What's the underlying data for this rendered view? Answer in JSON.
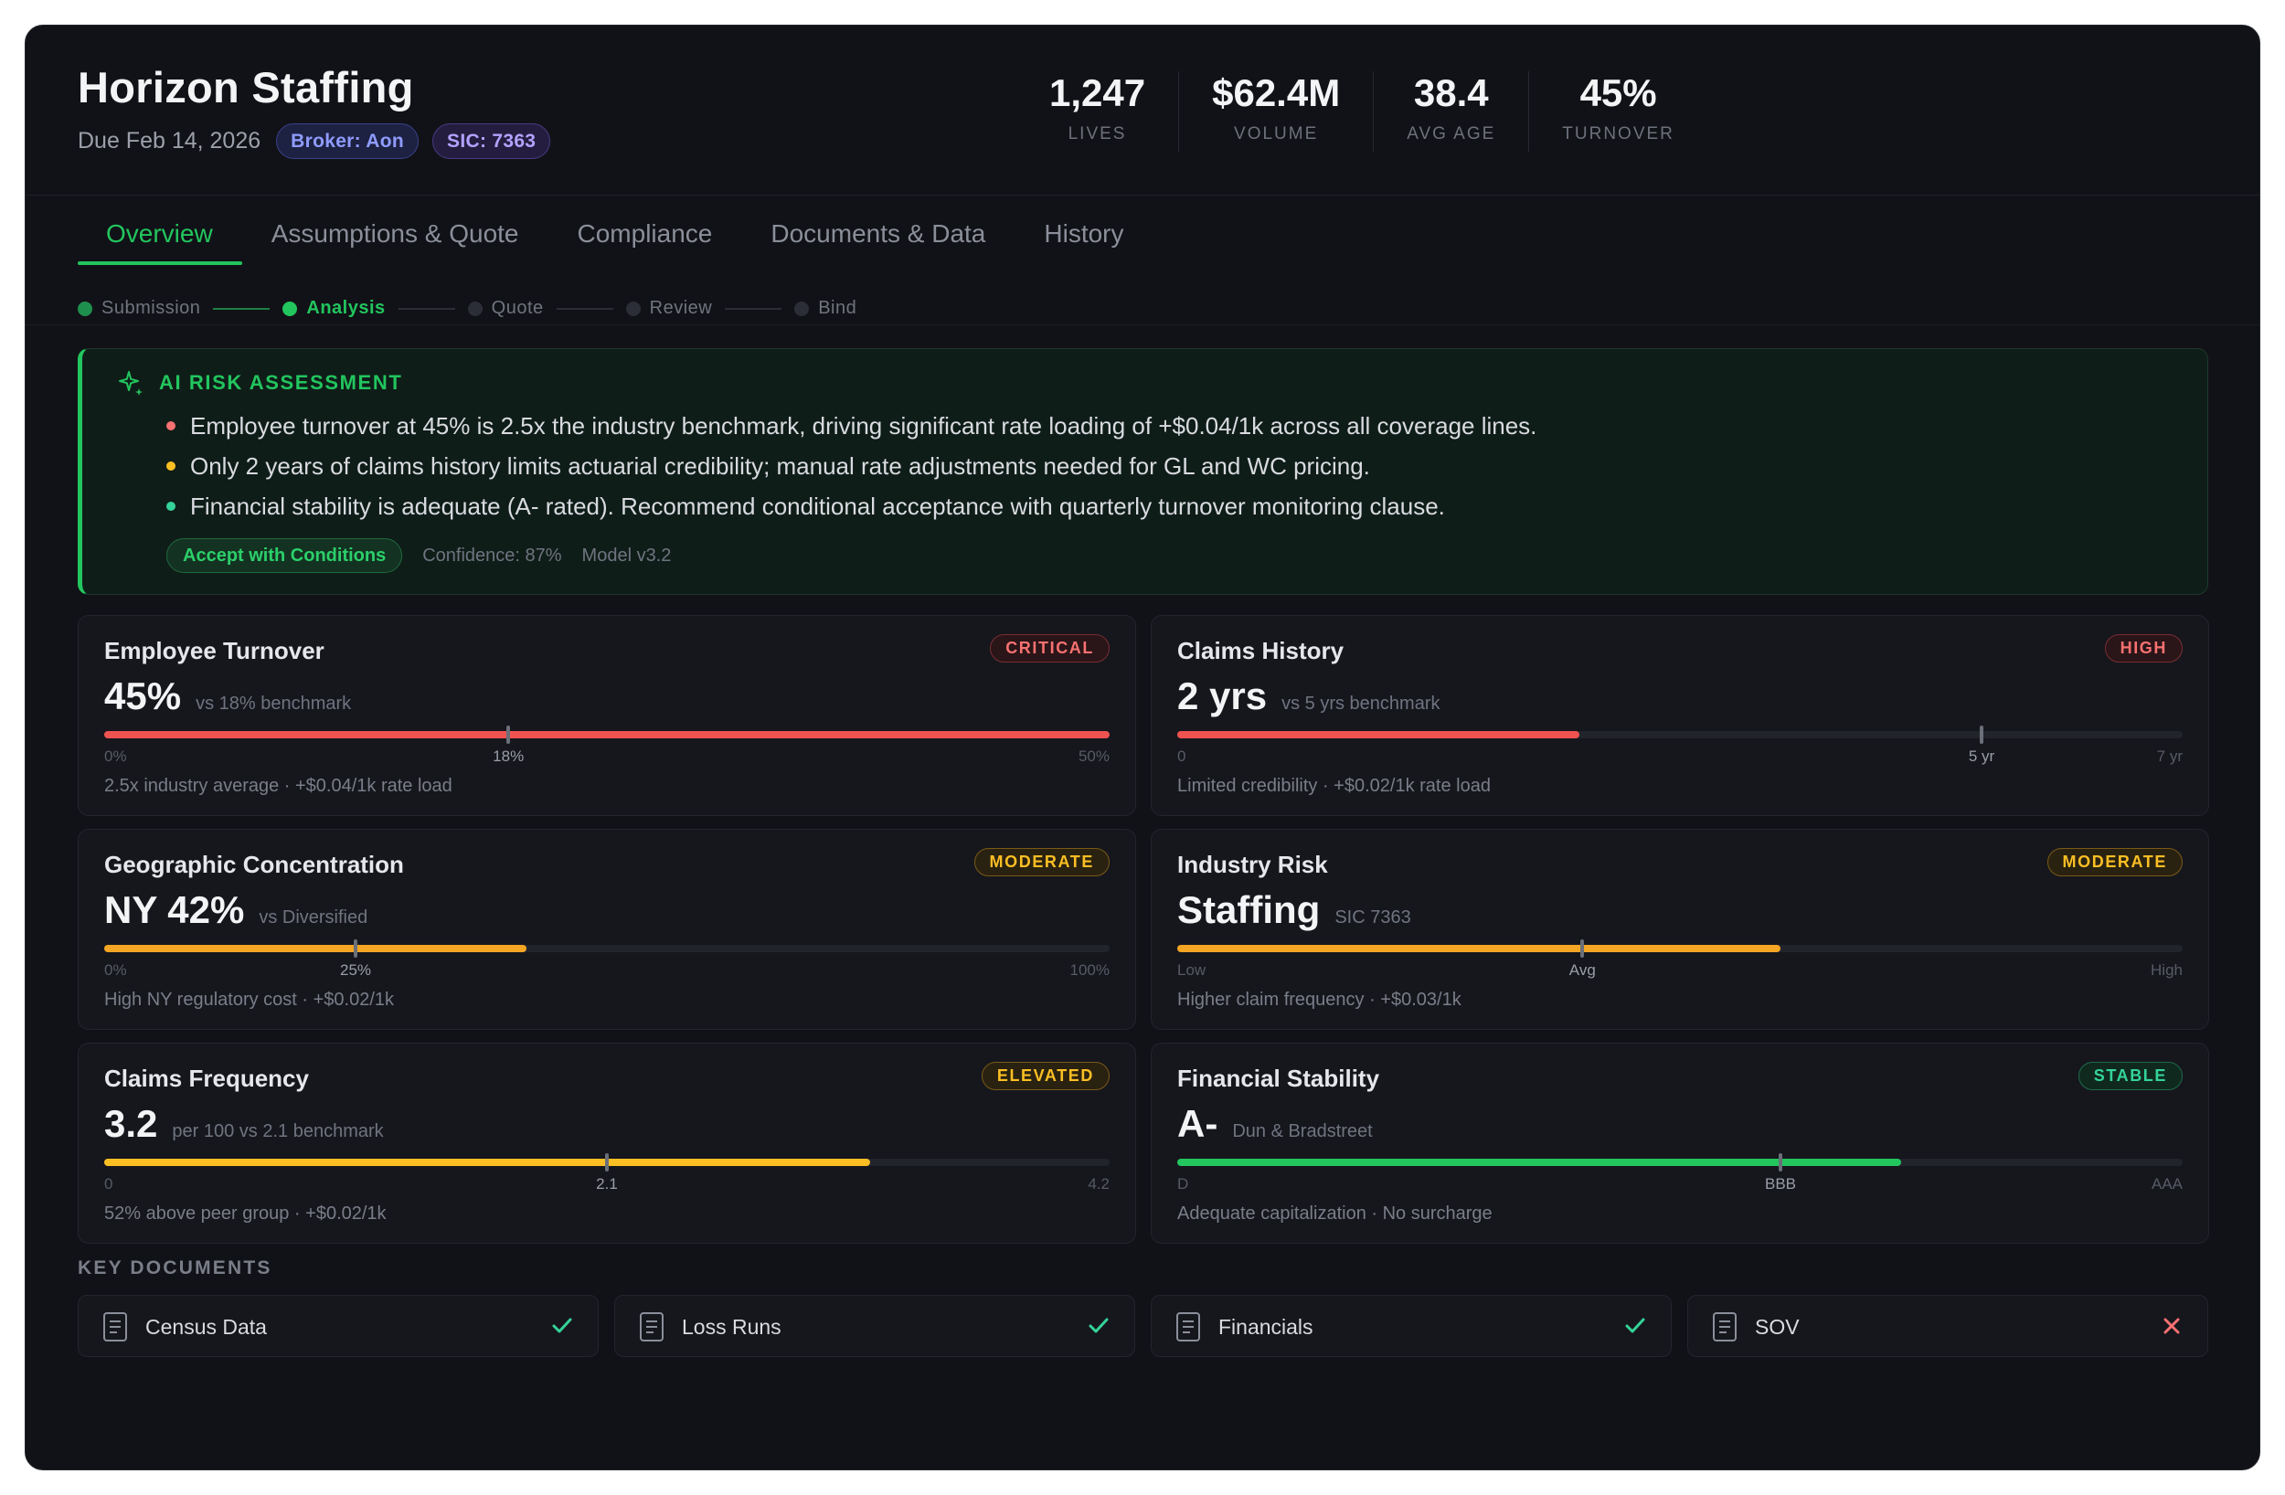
{
  "header": {
    "title": "Horizon Staffing",
    "due": "Due Feb 14, 2026",
    "broker": "Broker: Aon",
    "sic": "SIC: 7363"
  },
  "stats": [
    {
      "value": "1,247",
      "label": "LIVES"
    },
    {
      "value": "$62.4M",
      "label": "VOLUME"
    },
    {
      "value": "38.4",
      "label": "AVG AGE"
    },
    {
      "value": "45%",
      "label": "TURNOVER"
    }
  ],
  "tabs": [
    "Overview",
    "Assumptions & Quote",
    "Compliance",
    "Documents & Data",
    "History"
  ],
  "active_tab": "Overview",
  "stepper": [
    {
      "label": "Submission",
      "state": "done"
    },
    {
      "label": "Analysis",
      "state": "current"
    },
    {
      "label": "Quote",
      "state": "pending"
    },
    {
      "label": "Review",
      "state": "pending"
    },
    {
      "label": "Bind",
      "state": "pending"
    }
  ],
  "ai": {
    "title": "AI RISK ASSESSMENT",
    "items": [
      {
        "color": "#f87171",
        "text": "Employee turnover at 45% is 2.5x the industry benchmark, driving significant rate loading of +$0.04/1k across all coverage lines."
      },
      {
        "color": "#fbbf24",
        "text": "Only 2 years of claims history limits actuarial credibility; manual rate adjustments needed for GL and WC pricing."
      },
      {
        "color": "#34d399",
        "text": "Financial stability is adequate (A- rated). Recommend conditional acceptance with quarterly turnover monitoring clause."
      }
    ],
    "action": "Accept with Conditions",
    "confidence": "Confidence: 87%",
    "model": "Model v3.2"
  },
  "risks": [
    {
      "title": "Employee Turnover",
      "badge": "CRITICAL",
      "badge_class": "critical",
      "value": "45%",
      "sub": "vs 18% benchmark",
      "fill": 1.0,
      "marker": 0.402,
      "bar_color": "#ef5350",
      "ticks": [
        "0%",
        "18%",
        "50%"
      ],
      "note": "2.5x industry average · +$0.04/1k rate load"
    },
    {
      "title": "Claims History",
      "badge": "HIGH",
      "badge_class": "high",
      "value": "2 yrs",
      "sub": "vs 5 yrs benchmark",
      "fill": 0.4,
      "marker": 0.8,
      "bar_color": "#ef5350",
      "ticks": [
        "0",
        "5 yr",
        "7 yr"
      ],
      "note": "Limited credibility · +$0.02/1k rate load"
    },
    {
      "title": "Geographic Concentration",
      "badge": "MODERATE",
      "badge_class": "moderate",
      "value": "NY 42%",
      "sub": "vs Diversified",
      "fill": 0.42,
      "marker": 0.25,
      "bar_color": "#f5a524",
      "ticks": [
        "0%",
        "25%",
        "100%"
      ],
      "note": "High NY regulatory cost · +$0.02/1k"
    },
    {
      "title": "Industry Risk",
      "badge": "MODERATE",
      "badge_class": "moderate",
      "value": "Staffing",
      "sub": "SIC 7363",
      "fill": 0.6,
      "marker": 0.403,
      "bar_color": "#f5a524",
      "ticks": [
        "Low",
        "Avg",
        "High"
      ],
      "note": "Higher claim frequency · +$0.03/1k"
    },
    {
      "title": "Claims Frequency",
      "badge": "ELEVATED",
      "badge_class": "elevated",
      "value": "3.2",
      "sub": "per 100 vs 2.1 benchmark",
      "fill": 0.762,
      "marker": 0.5,
      "bar_color": "#fbbf24",
      "ticks": [
        "0",
        "2.1",
        "4.2"
      ],
      "note": "52% above peer group · +$0.02/1k"
    },
    {
      "title": "Financial Stability",
      "badge": "STABLE",
      "badge_class": "stable",
      "value": "A-",
      "sub": "Dun & Bradstreet",
      "fill": 0.72,
      "marker": 0.6,
      "bar_color": "#22c55e",
      "ticks": [
        "D",
        "BBB",
        "AAA"
      ],
      "note": "Adequate capitalization · No surcharge"
    }
  ],
  "key_documents": {
    "title": "KEY DOCUMENTS",
    "items": [
      {
        "name": "Census Data",
        "status": "complete"
      },
      {
        "name": "Loss Runs",
        "status": "complete"
      },
      {
        "name": "Financials",
        "status": "complete"
      },
      {
        "name": "SOV",
        "status": "missing"
      }
    ]
  },
  "colors": {
    "accent": "#22c55e",
    "critical": "#ef5350",
    "warning": "#fbbf24",
    "missing": "#f87171"
  }
}
